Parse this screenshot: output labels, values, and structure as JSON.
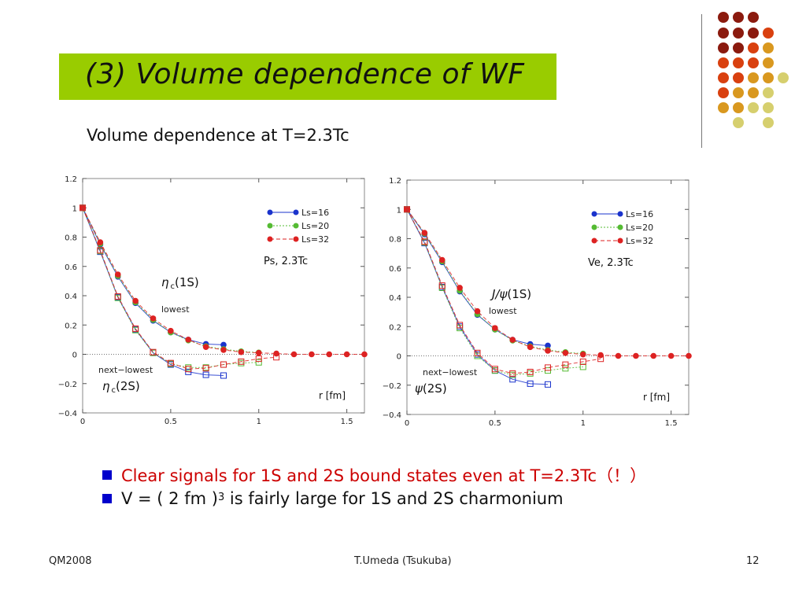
{
  "slide": {
    "title": "(3) Volume dependence of WF",
    "subtitle": "Volume dependence at T=2.3Tc",
    "bullets": [
      {
        "text": "Clear signals for 1S and 2S bound states even at T=2.3Tc（！）"
      },
      {
        "pre": "V = ( 2 fm )",
        "sup": "3",
        "post": " is fairly large for 1S and 2S charmonium"
      }
    ],
    "footer": {
      "left": "QM2008",
      "center": "T.Umeda (Tsukuba)",
      "right": "12"
    },
    "colors": {
      "title_bg": "#99cc00",
      "bullet_square": "#0000cc",
      "bullet1_text": "#cc0000",
      "Ls16": "#1a33cc",
      "Ls20": "#55bb33",
      "Ls32": "#dd2222"
    }
  },
  "chart_data": [
    {
      "type": "line",
      "panel_label": "Ps,  2.3Tc",
      "xlabel": "r [fm]",
      "xlim": [
        0,
        1.6
      ],
      "ylim": [
        -0.4,
        1.2
      ],
      "xticks": [
        0,
        0.5,
        1,
        1.5
      ],
      "xtick_labels": [
        "0",
        "0.5",
        "1",
        "1.5"
      ],
      "yticks": [
        -0.4,
        -0.2,
        0,
        0.2,
        0.4,
        0.6,
        0.8,
        1,
        1.2
      ],
      "ytick_labels": [
        "−0.4",
        "−0.2",
        "0",
        "0.2",
        "0.4",
        "0.6",
        "0.8",
        "1",
        "1.2"
      ],
      "legend": [
        "Ls=16",
        "Ls=20",
        "Ls=32"
      ],
      "legend_position": "top-right",
      "annotations": [
        {
          "greek": "η",
          "sub": "c",
          "tail": "(1S)"
        },
        {
          "text": "lowest"
        },
        {
          "text": "next−lowest"
        },
        {
          "greek": "η",
          "sub": "c",
          "tail": "(2S)"
        }
      ],
      "series": [
        {
          "name": "Ls=16",
          "state": "1S",
          "x": [
            0,
            0.1,
            0.2,
            0.3,
            0.4,
            0.5,
            0.6,
            0.7,
            0.8
          ],
          "y": [
            1.0,
            0.75,
            0.53,
            0.35,
            0.23,
            0.15,
            0.1,
            0.07,
            0.065
          ]
        },
        {
          "name": "Ls=20",
          "state": "1S",
          "x": [
            0,
            0.1,
            0.2,
            0.3,
            0.4,
            0.5,
            0.6,
            0.7,
            0.8,
            0.9,
            1.0
          ],
          "y": [
            1.0,
            0.755,
            0.535,
            0.355,
            0.235,
            0.15,
            0.095,
            0.055,
            0.035,
            0.02,
            0.012
          ]
        },
        {
          "name": "Ls=32",
          "state": "1S",
          "x": [
            0,
            0.1,
            0.2,
            0.3,
            0.4,
            0.5,
            0.6,
            0.7,
            0.8,
            0.9,
            1.0,
            1.1,
            1.2,
            1.3,
            1.4,
            1.5,
            1.6
          ],
          "y": [
            1.0,
            0.765,
            0.545,
            0.365,
            0.245,
            0.16,
            0.1,
            0.05,
            0.03,
            0.015,
            0.01,
            0.005,
            0.0,
            0.0,
            0.0,
            0.0,
            0.0
          ]
        },
        {
          "name": "Ls=16",
          "state": "2S",
          "x": [
            0,
            0.1,
            0.2,
            0.3,
            0.4,
            0.5,
            0.6,
            0.7,
            0.8
          ],
          "y": [
            1.0,
            0.7,
            0.39,
            0.17,
            0.01,
            -0.07,
            -0.12,
            -0.14,
            -0.145
          ]
        },
        {
          "name": "Ls=20",
          "state": "2S",
          "x": [
            0,
            0.1,
            0.2,
            0.3,
            0.4,
            0.5,
            0.6,
            0.7,
            0.8,
            0.9,
            1.0
          ],
          "y": [
            1.0,
            0.705,
            0.385,
            0.165,
            0.01,
            -0.065,
            -0.09,
            -0.09,
            -0.07,
            -0.06,
            -0.055
          ]
        },
        {
          "name": "Ls=32",
          "state": "2S",
          "x": [
            0,
            0.1,
            0.2,
            0.3,
            0.4,
            0.5,
            0.6,
            0.7,
            0.8,
            0.9,
            1.0,
            1.1
          ],
          "y": [
            1.0,
            0.71,
            0.395,
            0.175,
            0.015,
            -0.06,
            -0.1,
            -0.095,
            -0.07,
            -0.05,
            -0.03,
            -0.02
          ]
        }
      ]
    },
    {
      "type": "line",
      "panel_label": "Ve,  2.3Tc",
      "xlabel": "r [fm]",
      "xlim": [
        0,
        1.6
      ],
      "ylim": [
        -0.4,
        1.2
      ],
      "xticks": [
        0,
        0.5,
        1,
        1.5
      ],
      "xtick_labels": [
        "0",
        "0.5",
        "1",
        "1.5"
      ],
      "yticks": [
        -0.4,
        -0.2,
        0,
        0.2,
        0.4,
        0.6,
        0.8,
        1,
        1.2
      ],
      "ytick_labels": [
        "−0.4",
        "−0.2",
        "0",
        "0.2",
        "0.4",
        "0.6",
        "0.8",
        "1",
        "1.2"
      ],
      "legend": [
        "Ls=16",
        "Ls=20",
        "Ls=32"
      ],
      "legend_position": "top-right",
      "annotations": [
        {
          "greek": "J/ψ",
          "sub": "",
          "tail": "(1S)"
        },
        {
          "text": "lowest"
        },
        {
          "text": "next−lowest"
        },
        {
          "greek": "ψ",
          "sub": "",
          "tail": "(2S)"
        }
      ],
      "series": [
        {
          "name": "Ls=16",
          "state": "1S",
          "x": [
            0,
            0.1,
            0.2,
            0.3,
            0.4,
            0.5,
            0.6,
            0.7,
            0.8
          ],
          "y": [
            1.0,
            0.83,
            0.64,
            0.44,
            0.28,
            0.18,
            0.11,
            0.08,
            0.07
          ]
        },
        {
          "name": "Ls=20",
          "state": "1S",
          "x": [
            0,
            0.1,
            0.2,
            0.3,
            0.4,
            0.5,
            0.6,
            0.7,
            0.8,
            0.9,
            1.0
          ],
          "y": [
            1.0,
            0.835,
            0.645,
            0.445,
            0.285,
            0.18,
            0.105,
            0.065,
            0.04,
            0.025,
            0.015
          ]
        },
        {
          "name": "Ls=32",
          "state": "1S",
          "x": [
            0,
            0.1,
            0.2,
            0.3,
            0.4,
            0.5,
            0.6,
            0.7,
            0.8,
            0.9,
            1.0,
            1.1,
            1.2,
            1.3,
            1.4,
            1.5,
            1.6
          ],
          "y": [
            1.0,
            0.84,
            0.655,
            0.465,
            0.305,
            0.19,
            0.11,
            0.06,
            0.035,
            0.02,
            0.01,
            0.005,
            0.0,
            0.0,
            0.0,
            0.0,
            0.0
          ]
        },
        {
          "name": "Ls=16",
          "state": "2S",
          "x": [
            0,
            0.1,
            0.2,
            0.3,
            0.4,
            0.5,
            0.6,
            0.7,
            0.8
          ],
          "y": [
            1.0,
            0.77,
            0.47,
            0.2,
            0.01,
            -0.1,
            -0.16,
            -0.19,
            -0.195
          ]
        },
        {
          "name": "Ls=20",
          "state": "2S",
          "x": [
            0,
            0.1,
            0.2,
            0.3,
            0.4,
            0.5,
            0.6,
            0.7,
            0.8,
            0.9,
            1.0
          ],
          "y": [
            1.0,
            0.775,
            0.465,
            0.19,
            0.0,
            -0.1,
            -0.13,
            -0.12,
            -0.1,
            -0.085,
            -0.075
          ]
        },
        {
          "name": "Ls=32",
          "state": "2S",
          "x": [
            0,
            0.1,
            0.2,
            0.3,
            0.4,
            0.5,
            0.6,
            0.7,
            0.8,
            0.9,
            1.0,
            1.1
          ],
          "y": [
            1.0,
            0.78,
            0.48,
            0.21,
            0.02,
            -0.09,
            -0.12,
            -0.11,
            -0.08,
            -0.06,
            -0.04,
            -0.02
          ]
        }
      ]
    }
  ]
}
